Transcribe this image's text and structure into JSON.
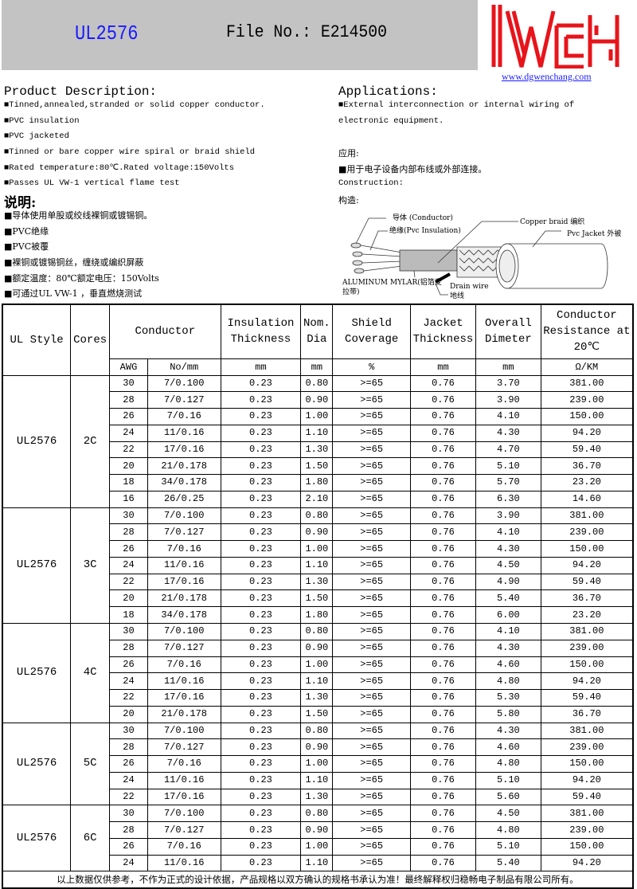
{
  "header": {
    "model": "UL2576",
    "file_no": "File No.: E214500",
    "logo_text": "WCH",
    "website": "www.dgwenchang.com",
    "brand_color": "#e8141b"
  },
  "description": {
    "title": "Product Description:",
    "items": [
      "■Tinned,annealed,stranded or solid copper conductor.",
      "■PVC insulation",
      "■PVC jacketed",
      "■Tinned or bare copper wire spiral or braid shield",
      "■Rated temperature:80℃.Rated voltage:150Volts",
      "■Passes UL VW-1 vertical flame test"
    ]
  },
  "description_cn": {
    "title": "说明:",
    "items": [
      "■导体使用单股或绞线裸铜或镀锡铜。",
      "■PVC绝缘",
      "■PVC被覆",
      "■裸铜或镀锡铜丝，缠绕或编织屏蔽",
      "■额定温度：80℃额定电压：150Volts",
      "■可通过UL VW-1 ，垂直燃烧测试"
    ]
  },
  "applications": {
    "title": "Applications:",
    "line1": "■External interconnection or internal wiring of",
    "line2": "electronic equipment.",
    "cn_title": "应用:",
    "cn_item": "■用于电子设备内部布线或外部连接。",
    "construction": "Construction:",
    "construction_cn": "构造:"
  },
  "diagram": {
    "conductor": "导体 (Conductor)",
    "insulation": "绝缘(Pvc  Insulation)",
    "braid": "Copper braid 编织",
    "jacket": "Pvc Jacket 外被",
    "mylar1": "ALUMINUM MYLAR(铝箔麦",
    "mylar2": "拉带)",
    "drain1": "Drain wire",
    "drain2": "地线"
  },
  "table": {
    "headers": {
      "ul_style": "UL Style",
      "cores": "Cores",
      "conductor": "Conductor",
      "insulation": "Insulation Thickness",
      "nom_dia": "Nom. Dia",
      "shield": "Shield Coverage",
      "jacket": "Jacket Thickness",
      "overall": "Overall Dimeter",
      "resistance": "Conductor Resistance at 20℃"
    },
    "units": [
      "AWG",
      "No/mm",
      "mm",
      "mm",
      "%",
      "mm",
      "mm",
      "Ω/KM"
    ],
    "groups": [
      {
        "style": "UL2576",
        "cores": "2C",
        "rows": [
          [
            "30",
            "7/0.100",
            "0.23",
            "0.80",
            ">=65",
            "0.76",
            "3.70",
            "381.00"
          ],
          [
            "28",
            "7/0.127",
            "0.23",
            "0.90",
            ">=65",
            "0.76",
            "3.90",
            "239.00"
          ],
          [
            "26",
            "7/0.16",
            "0.23",
            "1.00",
            ">=65",
            "0.76",
            "4.10",
            "150.00"
          ],
          [
            "24",
            "11/0.16",
            "0.23",
            "1.10",
            ">=65",
            "0.76",
            "4.30",
            "94.20"
          ],
          [
            "22",
            "17/0.16",
            "0.23",
            "1.30",
            ">=65",
            "0.76",
            "4.70",
            "59.40"
          ],
          [
            "20",
            "21/0.178",
            "0.23",
            "1.50",
            ">=65",
            "0.76",
            "5.10",
            "36.70"
          ],
          [
            "18",
            "34/0.178",
            "0.23",
            "1.80",
            ">=65",
            "0.76",
            "5.70",
            "23.20"
          ],
          [
            "16",
            "26/0.25",
            "0.23",
            "2.10",
            ">=65",
            "0.76",
            "6.30",
            "14.60"
          ]
        ]
      },
      {
        "style": "UL2576",
        "cores": "3C",
        "rows": [
          [
            "30",
            "7/0.100",
            "0.23",
            "0.80",
            ">=65",
            "0.76",
            "3.90",
            "381.00"
          ],
          [
            "28",
            "7/0.127",
            "0.23",
            "0.90",
            ">=65",
            "0.76",
            "4.10",
            "239.00"
          ],
          [
            "26",
            "7/0.16",
            "0.23",
            "1.00",
            ">=65",
            "0.76",
            "4.30",
            "150.00"
          ],
          [
            "24",
            "11/0.16",
            "0.23",
            "1.10",
            ">=65",
            "0.76",
            "4.50",
            "94.20"
          ],
          [
            "22",
            "17/0.16",
            "0.23",
            "1.30",
            ">=65",
            "0.76",
            "4.90",
            "59.40"
          ],
          [
            "20",
            "21/0.178",
            "0.23",
            "1.50",
            ">=65",
            "0.76",
            "5.40",
            "36.70"
          ],
          [
            "18",
            "34/0.178",
            "0.23",
            "1.80",
            ">=65",
            "0.76",
            "6.00",
            "23.20"
          ]
        ]
      },
      {
        "style": "UL2576",
        "cores": "4C",
        "rows": [
          [
            "30",
            "7/0.100",
            "0.23",
            "0.80",
            ">=65",
            "0.76",
            "4.10",
            "381.00"
          ],
          [
            "28",
            "7/0.127",
            "0.23",
            "0.90",
            ">=65",
            "0.76",
            "4.30",
            "239.00"
          ],
          [
            "26",
            "7/0.16",
            "0.23",
            "1.00",
            ">=65",
            "0.76",
            "4.60",
            "150.00"
          ],
          [
            "24",
            "11/0.16",
            "0.23",
            "1.10",
            ">=65",
            "0.76",
            "4.80",
            "94.20"
          ],
          [
            "22",
            "17/0.16",
            "0.23",
            "1.30",
            ">=65",
            "0.76",
            "5.30",
            "59.40"
          ],
          [
            "20",
            "21/0.178",
            "0.23",
            "1.50",
            ">=65",
            "0.76",
            "5.80",
            "36.70"
          ]
        ]
      },
      {
        "style": "UL2576",
        "cores": "5C",
        "rows": [
          [
            "30",
            "7/0.100",
            "0.23",
            "0.80",
            ">=65",
            "0.76",
            "4.30",
            "381.00"
          ],
          [
            "28",
            "7/0.127",
            "0.23",
            "0.90",
            ">=65",
            "0.76",
            "4.60",
            "239.00"
          ],
          [
            "26",
            "7/0.16",
            "0.23",
            "1.00",
            ">=65",
            "0.76",
            "4.80",
            "150.00"
          ],
          [
            "24",
            "11/0.16",
            "0.23",
            "1.10",
            ">=65",
            "0.76",
            "5.10",
            "94.20"
          ],
          [
            "22",
            "17/0.16",
            "0.23",
            "1.30",
            ">=65",
            "0.76",
            "5.60",
            "59.40"
          ]
        ]
      },
      {
        "style": "UL2576",
        "cores": "6C",
        "rows": [
          [
            "30",
            "7/0.100",
            "0.23",
            "0.80",
            ">=65",
            "0.76",
            "4.50",
            "381.00"
          ],
          [
            "28",
            "7/0.127",
            "0.23",
            "0.90",
            ">=65",
            "0.76",
            "4.80",
            "239.00"
          ],
          [
            "26",
            "7/0.16",
            "0.23",
            "1.00",
            ">=65",
            "0.76",
            "5.10",
            "150.00"
          ],
          [
            "24",
            "11/0.16",
            "0.23",
            "1.10",
            ">=65",
            "0.76",
            "5.40",
            "94.20"
          ]
        ]
      }
    ],
    "footer": "以上数据仅供参考，不作为正式的设计依据，产品规格以双方确认的规格书承认为准！最终解释权归稳畅电子制品有限公司所有。"
  }
}
